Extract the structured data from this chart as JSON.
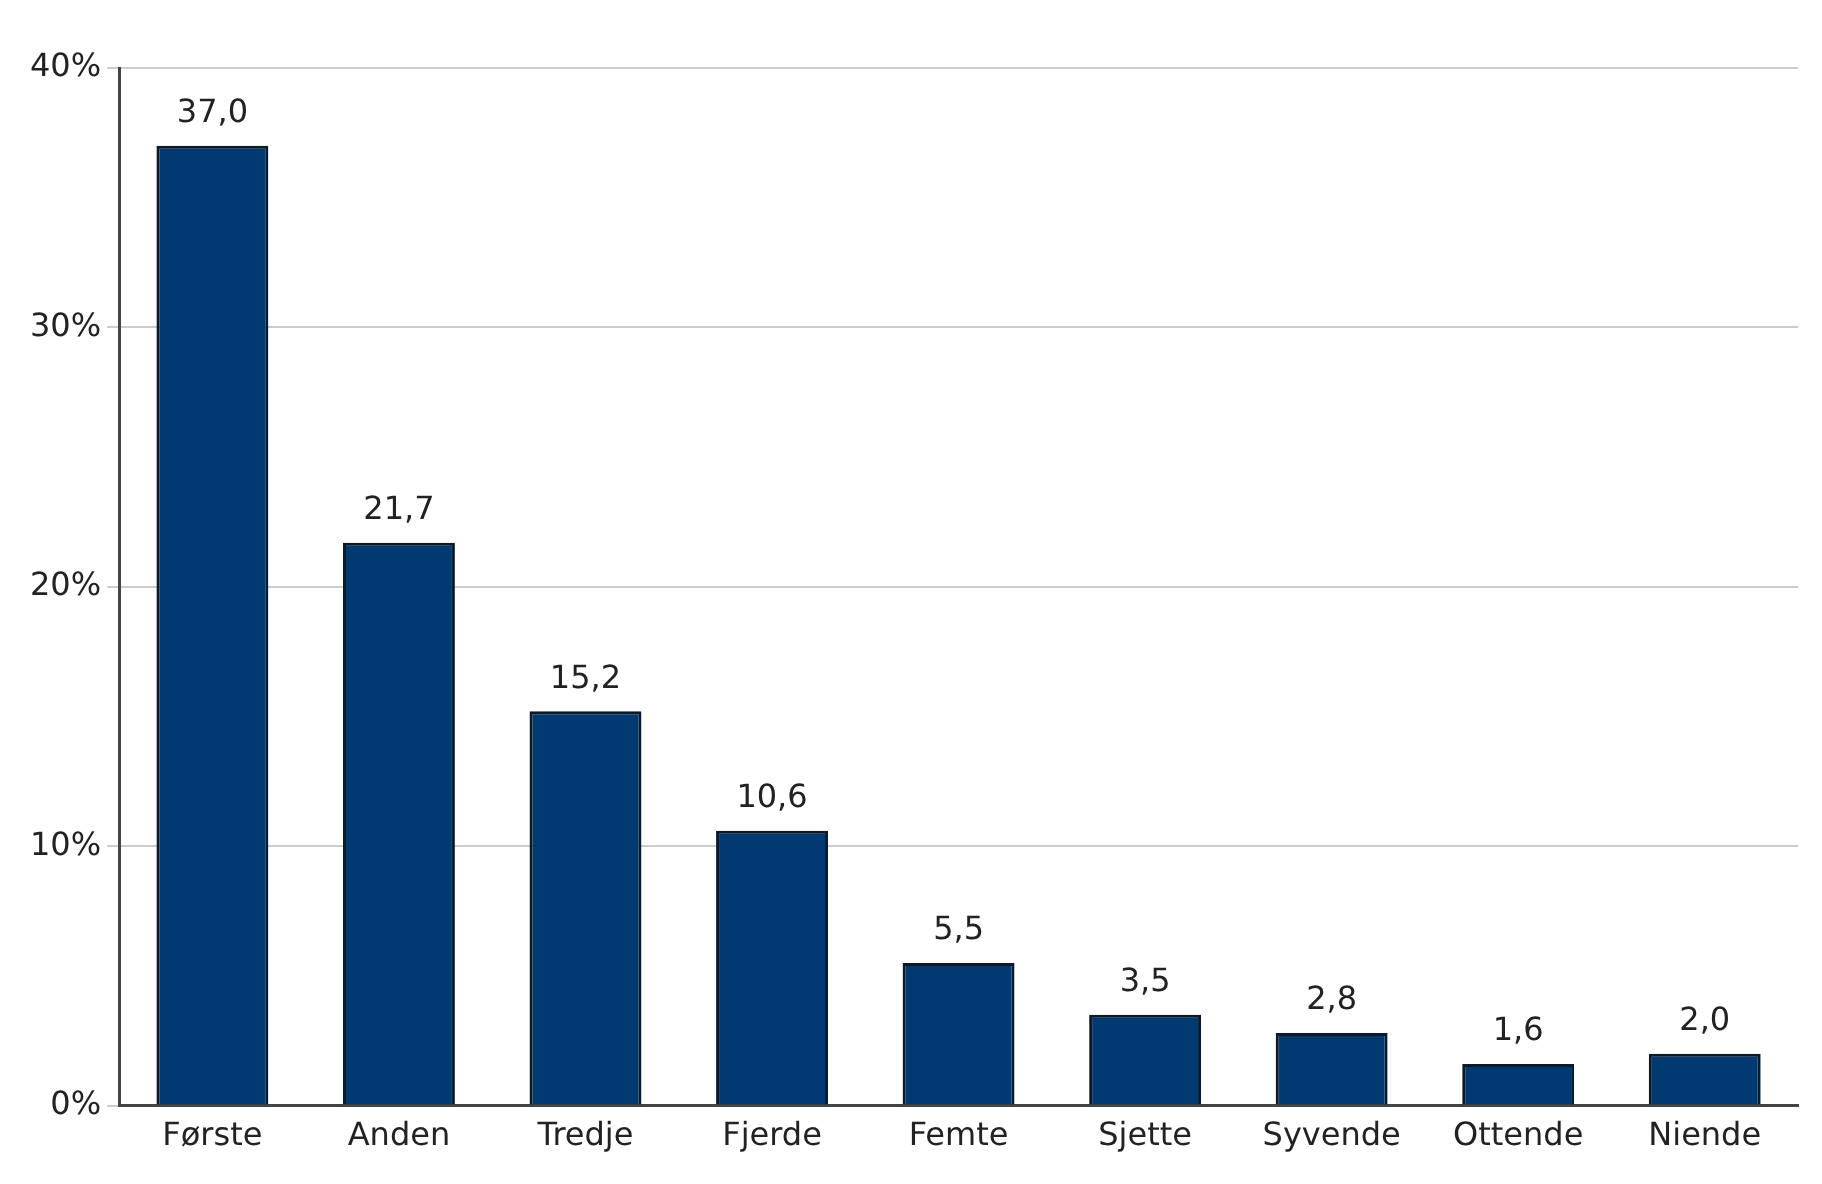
{
  "chart_data": {
    "type": "bar",
    "categories": [
      "Første",
      "Anden",
      "Tredje",
      "Fjerde",
      "Femte",
      "Sjette",
      "Syvende",
      "Ottende",
      "Niende"
    ],
    "values": [
      37.0,
      21.7,
      15.2,
      10.6,
      5.5,
      3.5,
      2.8,
      1.6,
      2.0
    ],
    "value_labels": [
      "37,0",
      "21,7",
      "15,2",
      "10,6",
      "5,5",
      "3,5",
      "2,8",
      "1,6",
      "2,0"
    ],
    "color": "#003a70",
    "ylim": [
      0,
      40
    ],
    "yticks": [
      {
        "value": 0,
        "label": "0%"
      },
      {
        "value": 10,
        "label": "10%"
      },
      {
        "value": 20,
        "label": "20%"
      },
      {
        "value": 30,
        "label": "30%"
      },
      {
        "value": 40,
        "label": "40%"
      }
    ],
    "grid": "y",
    "legend": false
  }
}
